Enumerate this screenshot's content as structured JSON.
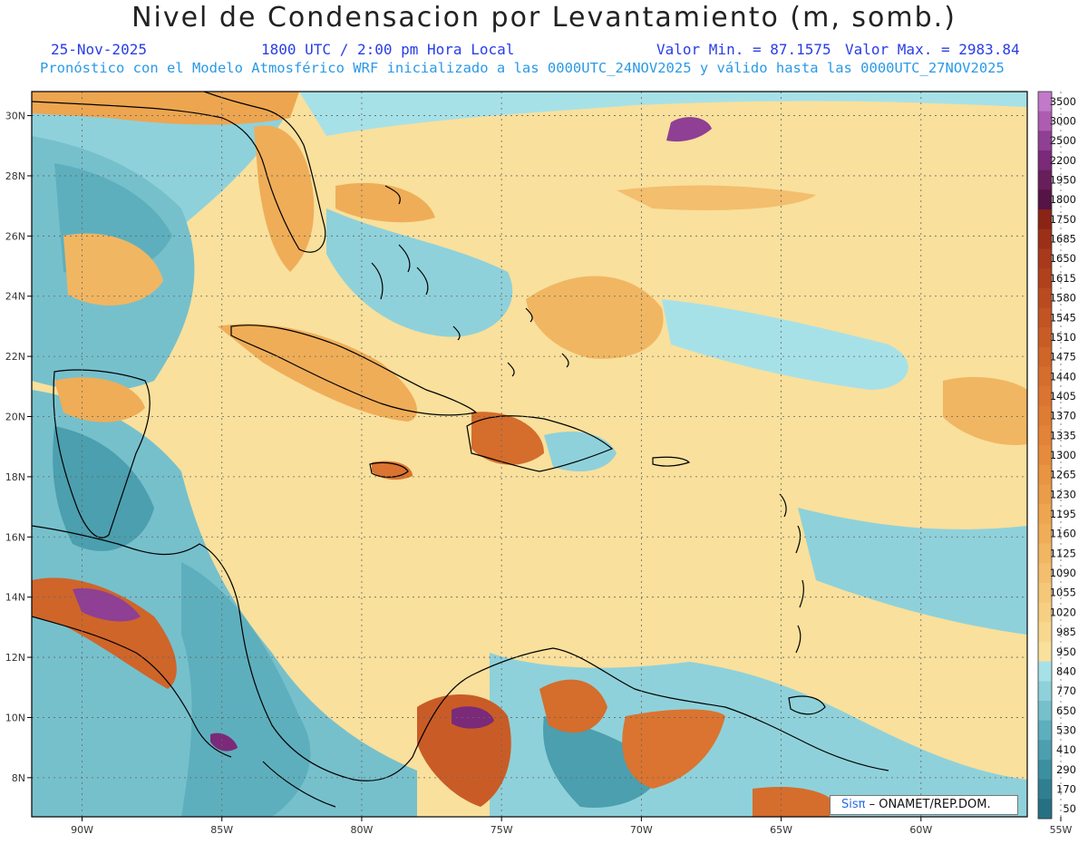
{
  "header": {
    "title": "Nivel de Condensacion por Levantamiento (m, somb.)",
    "date": "25-Nov-2025",
    "time": "1800 UTC / 2:00 pm Hora Local",
    "valor_min": "Valor Min. = 87.1575",
    "valor_max": "Valor Max. = 2983.84",
    "validity": "Pronóstico con el Modelo Atmosférico WRF inicializado a las 0000UTC_24NOV2025 y válido hasta las  0000UTC_27NOV2025"
  },
  "map": {
    "lat_labels": [
      "30N",
      "28N",
      "26N",
      "24N",
      "22N",
      "20N",
      "18N",
      "16N",
      "14N",
      "12N",
      "10N",
      "8N"
    ],
    "lat_values": [
      30,
      28,
      26,
      24,
      22,
      20,
      18,
      16,
      14,
      12,
      10,
      8
    ],
    "lon_labels": [
      "90W",
      "85W",
      "80W",
      "75W",
      "70W",
      "65W",
      "60W",
      "55W"
    ],
    "lon_values": [
      -90,
      -85,
      -80,
      -75,
      -70,
      -65,
      -60,
      -55
    ],
    "lat_range": [
      6.7,
      30.8
    ],
    "lon_range": [
      -91.8,
      -56.2
    ],
    "gridlines": "dotted"
  },
  "colorbar": {
    "levels": [
      "3500",
      "3000",
      "2500",
      "2200",
      "1950",
      "1800",
      "1750",
      "1685",
      "1650",
      "1615",
      "1580",
      "1545",
      "1510",
      "1475",
      "1440",
      "1405",
      "1370",
      "1335",
      "1300",
      "1265",
      "1230",
      "1195",
      "1160",
      "1125",
      "1090",
      "1055",
      "1020",
      "985",
      "950",
      "840",
      "770",
      "650",
      "530",
      "410",
      "290",
      "170",
      "50"
    ],
    "colors": [
      "#c279c9",
      "#ae5cb2",
      "#8f3f94",
      "#7a2a78",
      "#681e5a",
      "#561345",
      "#8a2414",
      "#9b3017",
      "#a8391b",
      "#b1401d",
      "#ba4a20",
      "#c25323",
      "#c95c26",
      "#cf6529",
      "#d56d2c",
      "#da7430",
      "#df7c33",
      "#e38337",
      "#e68b3b",
      "#e99441",
      "#eb9c48",
      "#eda550",
      "#efad58",
      "#f1b662",
      "#f3be6d",
      "#f5c778",
      "#f6cf83",
      "#f8d78f",
      "#f9e09c",
      "#a7e1e8",
      "#8fd1da",
      "#76c0cc",
      "#5eafbd",
      "#4b9faf",
      "#3b8fa0",
      "#2f7f91",
      "#267083"
    ]
  },
  "credit": {
    "brand": "Sisπ",
    "org": "– ONAMET/REP.DOM."
  }
}
